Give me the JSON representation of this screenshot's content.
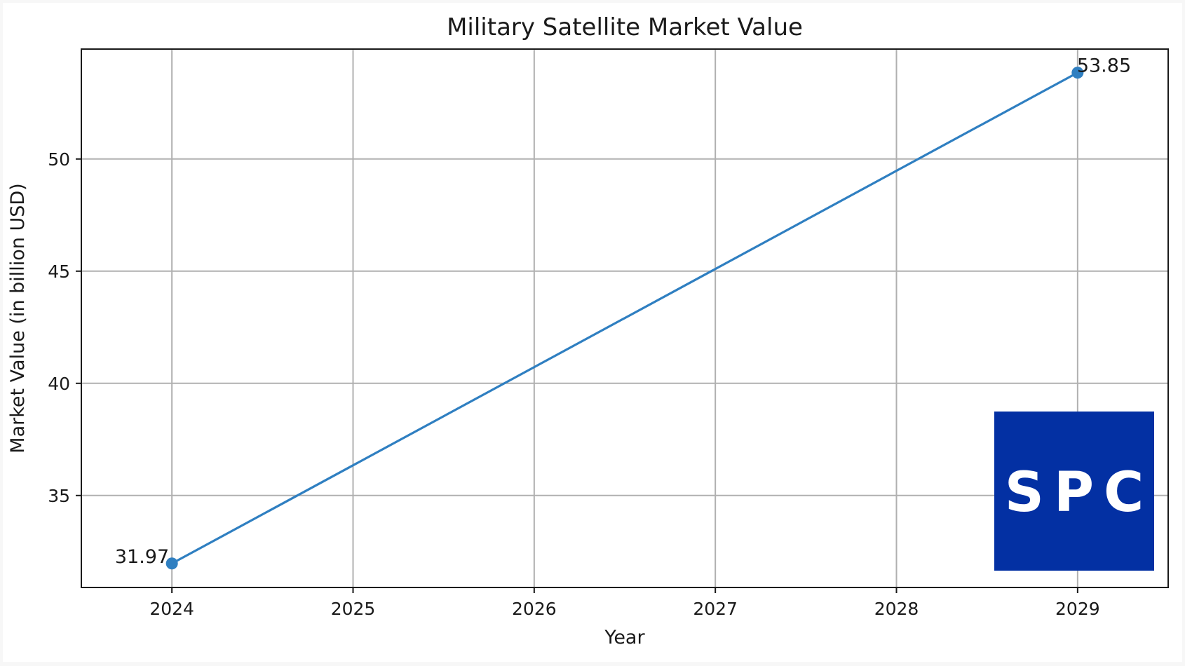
{
  "chart_data": {
    "type": "line",
    "title": "Military Satellite Market Value",
    "xlabel": "Year",
    "ylabel": "Market Value (in billion USD)",
    "x": [
      2024,
      2029
    ],
    "series": [
      {
        "values": [
          31.97,
          53.85
        ],
        "color": "#2f7fc1",
        "marker": "circle"
      }
    ],
    "data_labels": [
      "31.97",
      "53.85"
    ],
    "xticks": [
      2024,
      2025,
      2026,
      2027,
      2028,
      2029
    ],
    "xtick_labels": [
      "2024",
      "2025",
      "2026",
      "2027",
      "2028",
      "2029"
    ],
    "yticks": [
      35,
      40,
      45,
      50
    ],
    "ytick_labels": [
      "35",
      "40",
      "45",
      "50"
    ],
    "xlim": [
      2023.5,
      2029.5
    ],
    "ylim": [
      30.9,
      54.9
    ],
    "grid": true
  },
  "watermark": {
    "text": "SPC",
    "background": "#0330a3",
    "color": "#ffffff"
  }
}
